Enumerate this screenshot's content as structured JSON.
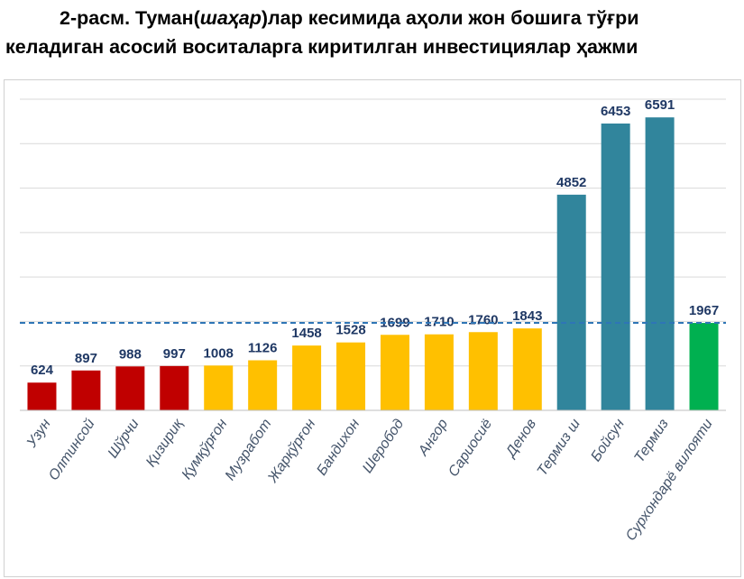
{
  "title_line1_a": "2-расм. Туман(",
  "title_line1_italic": "шаҳар",
  "title_line1_b": ")лар кесимида аҳоли жон бошига тўғри",
  "title_line2": "келадиган асосий воситаларга киритилган инвестициялар ҳажми",
  "chart_data": {
    "type": "bar",
    "categories": [
      "Узун",
      "Олтинсой",
      "Шўрчи",
      "Қизириқ",
      "Қумқўрғон",
      "Музработ",
      "Жарқўрғон",
      "Бандихон",
      "Шеробод",
      "Ангор",
      "Сариосиё",
      "Денов",
      "Термиз ш",
      "Бойсун",
      "Термиз",
      "Сурхондарё вилояти"
    ],
    "values": [
      624,
      897,
      988,
      997,
      1008,
      1126,
      1458,
      1528,
      1699,
      1710,
      1760,
      1843,
      4852,
      6453,
      6591,
      1967
    ],
    "colors": [
      "#C00000",
      "#C00000",
      "#C00000",
      "#C00000",
      "#FFC000",
      "#FFC000",
      "#FFC000",
      "#FFC000",
      "#FFC000",
      "#FFC000",
      "#FFC000",
      "#FFC000",
      "#31859C",
      "#31859C",
      "#31859C",
      "#00B050"
    ],
    "reference_line": {
      "value": 1967,
      "style": "dashed",
      "color": "#2E75B6"
    },
    "ylim": [
      0,
      7000
    ],
    "y_gridlines_step": 1000,
    "y_tick_labels_shown": false,
    "grid": true,
    "data_labels": true,
    "data_label_color": "#1F3864",
    "axis_label_color": "#44546A",
    "xlabel": "",
    "ylabel": ""
  }
}
